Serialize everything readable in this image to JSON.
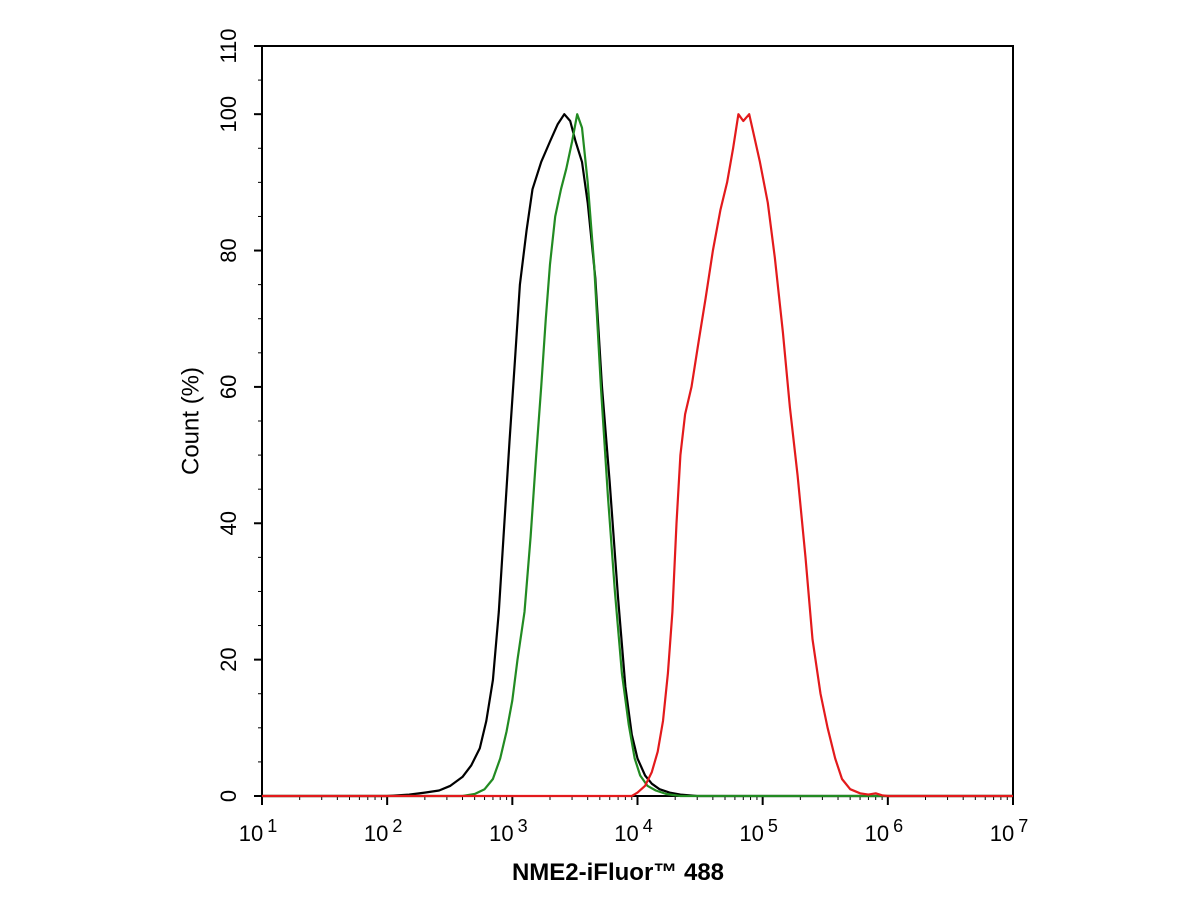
{
  "chart_data": {
    "type": "line",
    "title": "",
    "xlabel": "NME2-iFluor™ 488",
    "ylabel": "Count  (%)",
    "x_scale": "log",
    "xlim": [
      10,
      10000000
    ],
    "ylim": [
      0,
      110
    ],
    "x_ticks": [
      {
        "value": 10,
        "base": "10",
        "exp": "1"
      },
      {
        "value": 100,
        "base": "10",
        "exp": "2"
      },
      {
        "value": 1000,
        "base": "10",
        "exp": "3"
      },
      {
        "value": 10000,
        "base": "10",
        "exp": "4"
      },
      {
        "value": 100000,
        "base": "10",
        "exp": "5"
      },
      {
        "value": 1000000,
        "base": "10",
        "exp": "6"
      },
      {
        "value": 10000000,
        "base": "10",
        "exp": "7"
      }
    ],
    "y_ticks": [
      "0",
      "20",
      "40",
      "60",
      "80",
      "100",
      "110"
    ],
    "y_tick_values": [
      0,
      20,
      40,
      60,
      80,
      100,
      110
    ],
    "grid": false,
    "legend": "none",
    "series": [
      {
        "color": "#000000",
        "points": [
          [
            10,
            0
          ],
          [
            100,
            0
          ],
          [
            150,
            0.2
          ],
          [
            200,
            0.5
          ],
          [
            260,
            0.8
          ],
          [
            320,
            1.5
          ],
          [
            400,
            2.8
          ],
          [
            470,
            4.5
          ],
          [
            550,
            7
          ],
          [
            620,
            11
          ],
          [
            700,
            17
          ],
          [
            780,
            27
          ],
          [
            850,
            38
          ],
          [
            950,
            52
          ],
          [
            1050,
            64
          ],
          [
            1150,
            75
          ],
          [
            1300,
            83
          ],
          [
            1450,
            89
          ],
          [
            1700,
            93
          ],
          [
            2000,
            96
          ],
          [
            2300,
            98.5
          ],
          [
            2600,
            100
          ],
          [
            2900,
            99
          ],
          [
            3200,
            96
          ],
          [
            3600,
            93
          ],
          [
            4000,
            87
          ],
          [
            4600,
            76
          ],
          [
            5200,
            60
          ],
          [
            6000,
            46
          ],
          [
            7000,
            29
          ],
          [
            8000,
            16
          ],
          [
            9000,
            9
          ],
          [
            10000,
            5.5
          ],
          [
            11500,
            3
          ],
          [
            13000,
            1.8
          ],
          [
            15000,
            1
          ],
          [
            18000,
            0.5
          ],
          [
            22000,
            0.2
          ],
          [
            30000,
            0
          ],
          [
            10000000,
            0
          ]
        ]
      },
      {
        "color": "#228b22",
        "points": [
          [
            10,
            0
          ],
          [
            400,
            0
          ],
          [
            500,
            0.3
          ],
          [
            600,
            1
          ],
          [
            700,
            2.5
          ],
          [
            800,
            5.5
          ],
          [
            900,
            9.5
          ],
          [
            1000,
            14
          ],
          [
            1100,
            20
          ],
          [
            1250,
            27
          ],
          [
            1400,
            38
          ],
          [
            1550,
            50
          ],
          [
            1700,
            60
          ],
          [
            1850,
            70
          ],
          [
            2000,
            78
          ],
          [
            2200,
            85
          ],
          [
            2450,
            89
          ],
          [
            2700,
            92
          ],
          [
            3000,
            96
          ],
          [
            3300,
            100
          ],
          [
            3600,
            98
          ],
          [
            4000,
            90
          ],
          [
            4500,
            78
          ],
          [
            5100,
            60
          ],
          [
            5800,
            44
          ],
          [
            6600,
            30
          ],
          [
            7500,
            18
          ],
          [
            8500,
            10.5
          ],
          [
            9500,
            5.5
          ],
          [
            10500,
            3
          ],
          [
            12000,
            1.5
          ],
          [
            14000,
            0.8
          ],
          [
            17000,
            0.3
          ],
          [
            22000,
            0
          ],
          [
            10000000,
            0
          ]
        ]
      },
      {
        "color": "#e31a1c",
        "points": [
          [
            10,
            0
          ],
          [
            9000,
            0
          ],
          [
            10000,
            0.5
          ],
          [
            11500,
            1.5
          ],
          [
            13000,
            3.5
          ],
          [
            14500,
            6.5
          ],
          [
            16000,
            11
          ],
          [
            17500,
            18
          ],
          [
            19000,
            27
          ],
          [
            20500,
            40
          ],
          [
            22000,
            50
          ],
          [
            24000,
            56
          ],
          [
            27000,
            60
          ],
          [
            31000,
            67
          ],
          [
            35000,
            73
          ],
          [
            40000,
            80
          ],
          [
            46000,
            86
          ],
          [
            52000,
            90
          ],
          [
            58000,
            95
          ],
          [
            64000,
            100
          ],
          [
            70000,
            99
          ],
          [
            78000,
            100
          ],
          [
            85000,
            97
          ],
          [
            95000,
            93
          ],
          [
            110000,
            87
          ],
          [
            125000,
            79
          ],
          [
            145000,
            68
          ],
          [
            165000,
            57
          ],
          [
            190000,
            47
          ],
          [
            220000,
            35
          ],
          [
            250000,
            23
          ],
          [
            290000,
            15
          ],
          [
            330000,
            10
          ],
          [
            380000,
            5.5
          ],
          [
            430000,
            2.5
          ],
          [
            500000,
            1
          ],
          [
            600000,
            0.4
          ],
          [
            700000,
            0.2
          ],
          [
            800000,
            0.4
          ],
          [
            900000,
            0.1
          ],
          [
            1000000,
            0
          ],
          [
            10000000,
            0
          ]
        ]
      }
    ]
  }
}
